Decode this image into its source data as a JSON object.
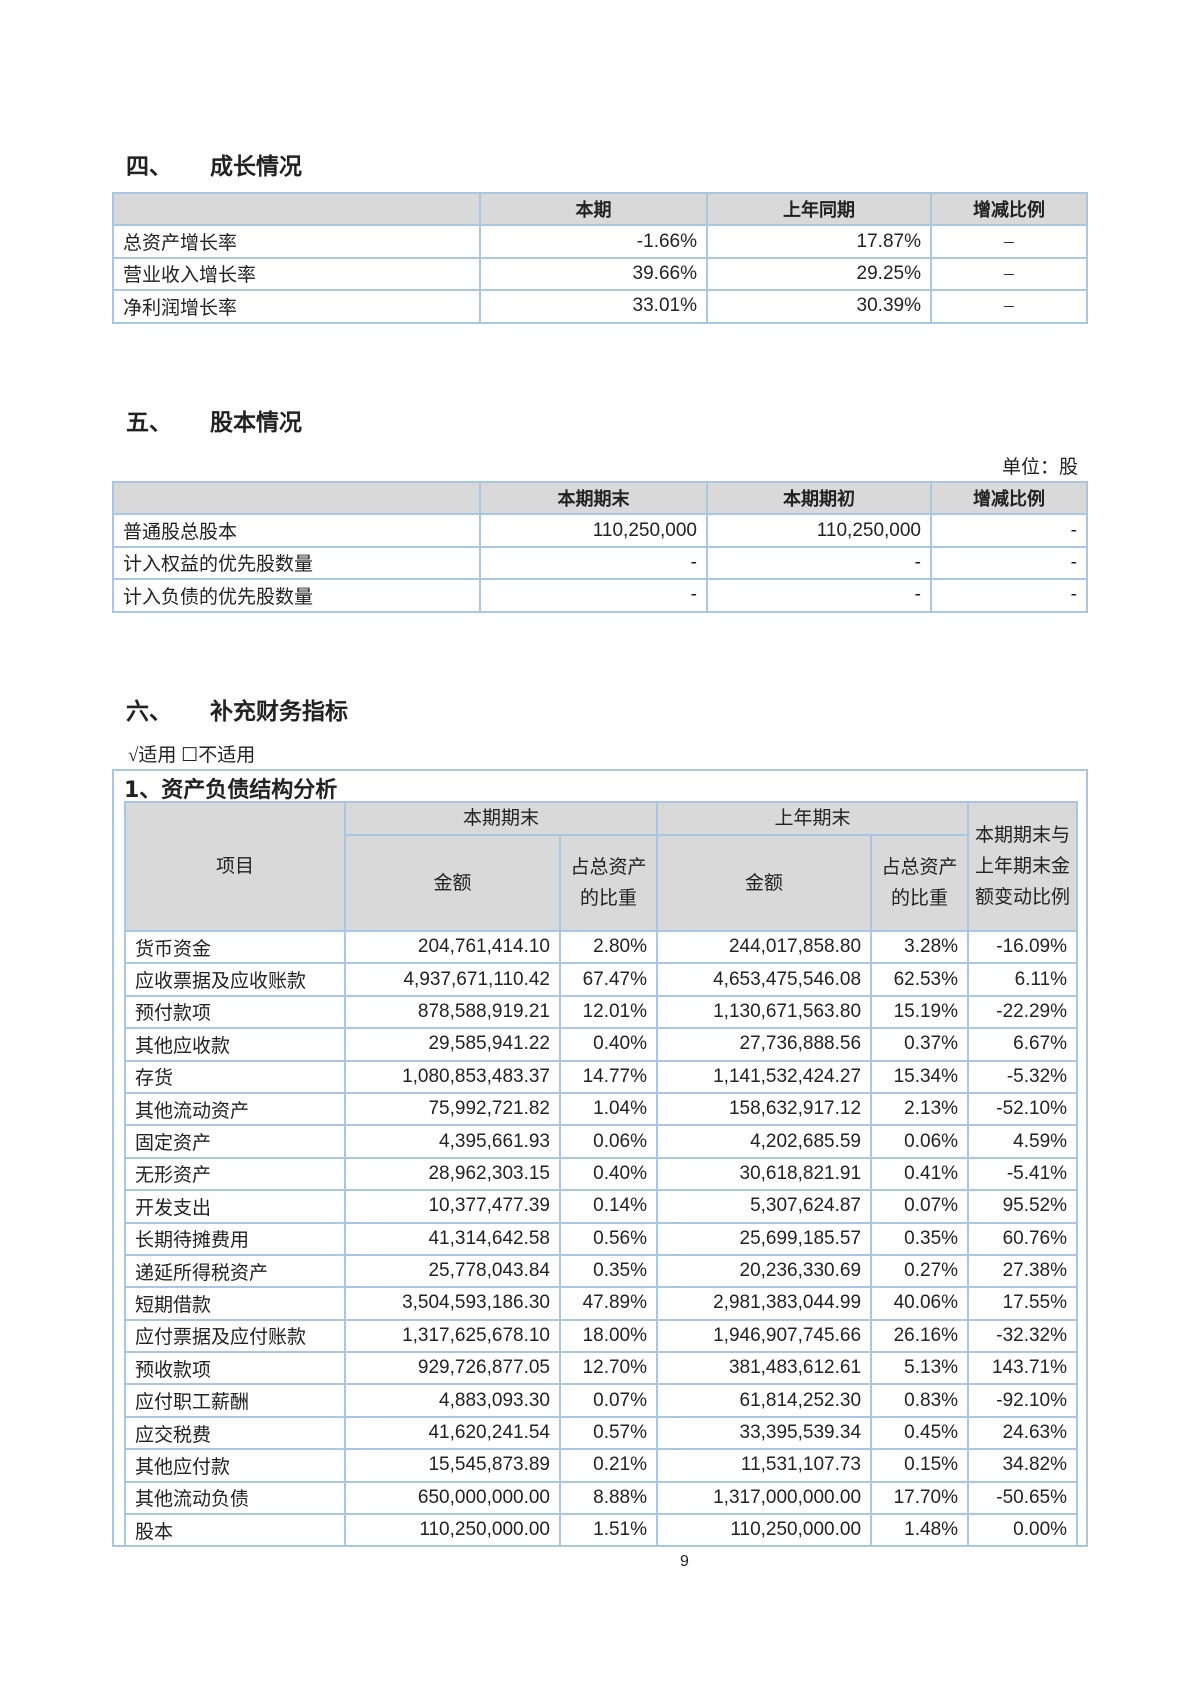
{
  "s4": {
    "num": "四、",
    "title": "成长情况",
    "headers": [
      "",
      "本期",
      "上年同期",
      "增减比例"
    ],
    "rows": [
      [
        "总资产增长率",
        "-1.66%",
        "17.87%",
        "–"
      ],
      [
        "营业收入增长率",
        "39.66%",
        "29.25%",
        "–"
      ],
      [
        "净利润增长率",
        "33.01%",
        "30.39%",
        "–"
      ]
    ]
  },
  "s5": {
    "num": "五、",
    "title": "股本情况",
    "unit": "单位：股",
    "headers": [
      "",
      "本期期末",
      "本期期初",
      "增减比例"
    ],
    "rows": [
      [
        "普通股总股本",
        "110,250,000",
        "110,250,000",
        "-"
      ],
      [
        "计入权益的优先股数量",
        "-",
        "-",
        "-"
      ],
      [
        "计入负债的优先股数量",
        "-",
        "-",
        "-"
      ]
    ]
  },
  "s6": {
    "num": "六、",
    "title": "补充财务指标",
    "applicable": "√适用 ☐不适用",
    "subtitle": "1、资产负债结构分析",
    "header": {
      "item": "项目",
      "current": "本期期末",
      "prior": "上年期末",
      "change": "本期期末与上年期末金额变动比例",
      "amount": "金额",
      "ratio": "占总资产的比重"
    },
    "rows": [
      [
        "货币资金",
        "204,761,414.10",
        "2.80%",
        "244,017,858.80",
        "3.28%",
        "-16.09%"
      ],
      [
        "应收票据及应收账款",
        "4,937,671,110.42",
        "67.47%",
        "4,653,475,546.08",
        "62.53%",
        "6.11%"
      ],
      [
        "预付款项",
        "878,588,919.21",
        "12.01%",
        "1,130,671,563.80",
        "15.19%",
        "-22.29%"
      ],
      [
        "其他应收款",
        "29,585,941.22",
        "0.40%",
        "27,736,888.56",
        "0.37%",
        "6.67%"
      ],
      [
        "存货",
        "1,080,853,483.37",
        "14.77%",
        "1,141,532,424.27",
        "15.34%",
        "-5.32%"
      ],
      [
        "其他流动资产",
        "75,992,721.82",
        "1.04%",
        "158,632,917.12",
        "2.13%",
        "-52.10%"
      ],
      [
        "固定资产",
        "4,395,661.93",
        "0.06%",
        "4,202,685.59",
        "0.06%",
        "4.59%"
      ],
      [
        "无形资产",
        "28,962,303.15",
        "0.40%",
        "30,618,821.91",
        "0.41%",
        "-5.41%"
      ],
      [
        "开发支出",
        "10,377,477.39",
        "0.14%",
        "5,307,624.87",
        "0.07%",
        "95.52%"
      ],
      [
        "长期待摊费用",
        "41,314,642.58",
        "0.56%",
        "25,699,185.57",
        "0.35%",
        "60.76%"
      ],
      [
        "递延所得税资产",
        "25,778,043.84",
        "0.35%",
        "20,236,330.69",
        "0.27%",
        "27.38%"
      ],
      [
        "短期借款",
        "3,504,593,186.30",
        "47.89%",
        "2,981,383,044.99",
        "40.06%",
        "17.55%"
      ],
      [
        "应付票据及应付账款",
        "1,317,625,678.10",
        "18.00%",
        "1,946,907,745.66",
        "26.16%",
        "-32.32%"
      ],
      [
        "预收款项",
        "929,726,877.05",
        "12.70%",
        "381,483,612.61",
        "5.13%",
        "143.71%"
      ],
      [
        "应付职工薪酬",
        "4,883,093.30",
        "0.07%",
        "61,814,252.30",
        "0.83%",
        "-92.10%"
      ],
      [
        "应交税费",
        "41,620,241.54",
        "0.57%",
        "33,395,539.34",
        "0.45%",
        "24.63%"
      ],
      [
        "其他应付款",
        "15,545,873.89",
        "0.21%",
        "11,531,107.73",
        "0.15%",
        "34.82%"
      ],
      [
        "其他流动负债",
        "650,000,000.00",
        "8.88%",
        "1,317,000,000.00",
        "17.70%",
        "-50.65%"
      ],
      [
        "股本",
        "110,250,000.00",
        "1.51%",
        "110,250,000.00",
        "1.48%",
        "0.00%"
      ]
    ]
  },
  "page_number": "9"
}
